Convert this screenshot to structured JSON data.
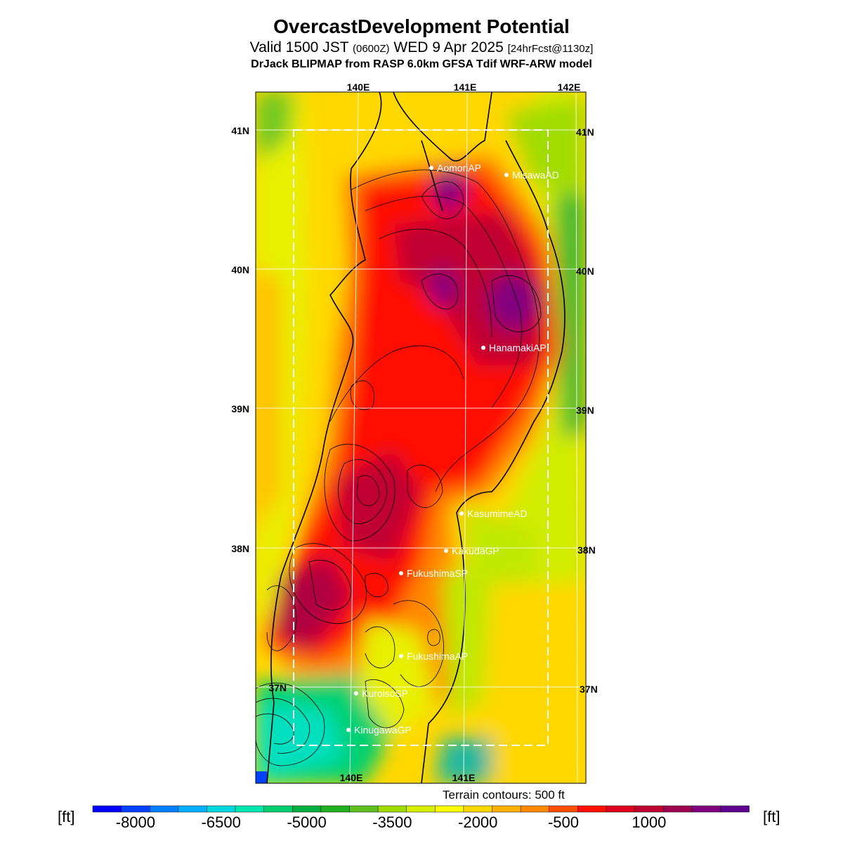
{
  "title": "OvercastDevelopment Potential",
  "subtitle": {
    "valid": "Valid 1500 JST",
    "utc": "(0600Z)",
    "date": "WED 9 Apr 2025",
    "forecast": "[24hrFcst@1130z]"
  },
  "model_line": "DrJack BLIPMAP from RASP 6.0km GFSA Tdif WRF-ARW model",
  "terrain_note": "Terrain contours: 500 ft",
  "axes": {
    "lon_labels": [
      "140E",
      "141E",
      "142E"
    ],
    "lat_labels": [
      "41N",
      "40N",
      "39N",
      "38N",
      "37N"
    ],
    "bottom_lon_labels": [
      "140E",
      "141E"
    ]
  },
  "stations": [
    {
      "name": "AomoriAP"
    },
    {
      "name": "MisawaAD"
    },
    {
      "name": "HanamakiAP"
    },
    {
      "name": "KasumimeAD"
    },
    {
      "name": "KakudaGP"
    },
    {
      "name": "FukushimaSP"
    },
    {
      "name": "FukushimaAP"
    },
    {
      "name": "KuroisoSP"
    },
    {
      "name": "KinugawaGP"
    }
  ],
  "colorbar": {
    "unit_left": "[ft]",
    "unit_right": "[ft]",
    "tick_labels": [
      "-8000",
      "-6500",
      "-5000",
      "-3500",
      "-2000",
      "-500",
      "1000"
    ],
    "colors": [
      "#0000ff",
      "#0040ff",
      "#0080ff",
      "#00b0ff",
      "#00d8e0",
      "#00e8b0",
      "#00d070",
      "#00b040",
      "#20b020",
      "#60c020",
      "#a0dc00",
      "#d8f000",
      "#ffff00",
      "#ffd800",
      "#ffb000",
      "#ff8800",
      "#ff5000",
      "#ff1000",
      "#e00020",
      "#c00030",
      "#a00050",
      "#800080",
      "#600090"
    ]
  }
}
